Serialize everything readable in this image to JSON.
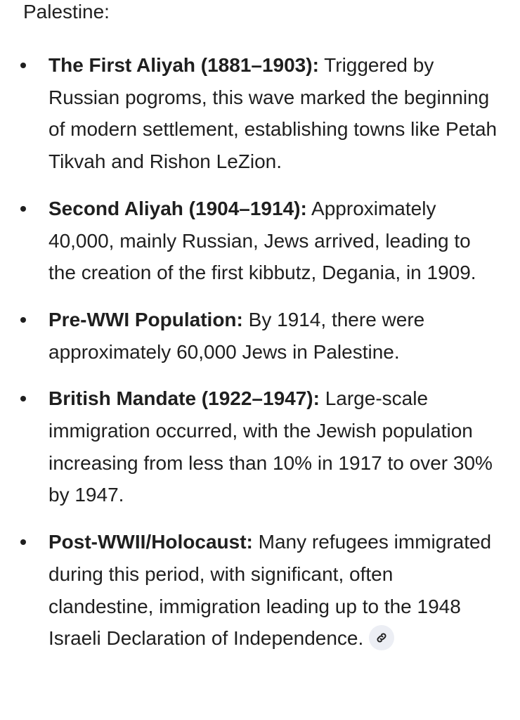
{
  "intro": "Palestine:",
  "items": [
    {
      "title": "The First Aliyah (1881–1903):",
      "text": " Triggered by Russian pogroms, this wave marked the beginning of modern settlement, establishing towns like Petah Tikvah and Rishon LeZion."
    },
    {
      "title": "Second Aliyah (1904–1914):",
      "text": " Approximately 40,000, mainly Russian, Jews arrived, leading to the creation of the first kibbutz, Degania, in 1909."
    },
    {
      "title": "Pre-WWI Population:",
      "text": " By 1914, there were approximately 60,000 Jews in Palestine."
    },
    {
      "title": "British Mandate (1922–1947):",
      "text": " Large-scale immigration occurred, with the Jewish population increasing from less than 10% in 1917 to over 30% by 1947."
    },
    {
      "title": "Post-WWII/Holocaust:",
      "text": " Many refugees immigrated during this period, with significant, often clandestine, immigration leading up to the 1948 Israeli Declaration of Independence."
    }
  ],
  "source_icon": "link-icon",
  "colors": {
    "text": "#1f1f1f",
    "chip": "#eceef4"
  }
}
